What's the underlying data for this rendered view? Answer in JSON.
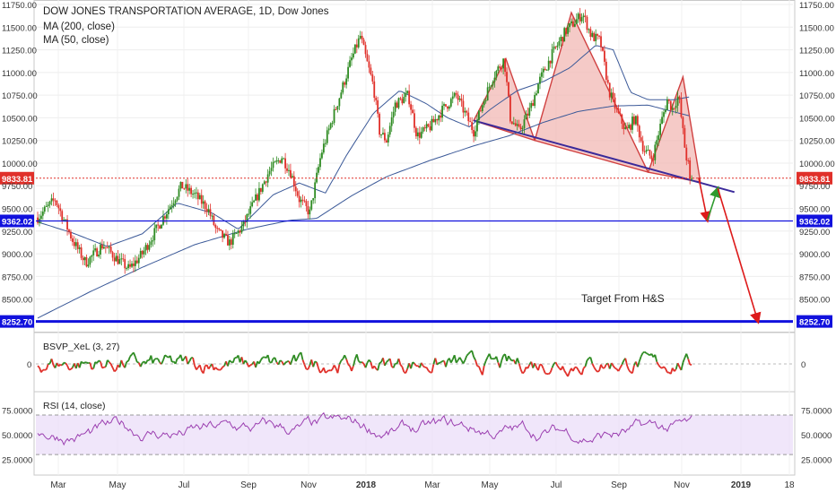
{
  "header": {
    "symbol_line": "DOW JONES TRANSPORTATION AVERAGE, 1D, Dow Jones",
    "ma200_label": "MA (200, close)",
    "ma50_label": "MA (50, close)"
  },
  "annotation": {
    "target_text": "Target From H&S"
  },
  "colors": {
    "up": "#2e8b22",
    "down": "#e0302a",
    "ma": "#3b5998",
    "hline": "#1111dd",
    "current_price": "#e0302a",
    "hs_fill": "#f2b8b4",
    "hs_line": "#d04040",
    "neckline": "#3a2a9a",
    "rsi_band": "#eadcf8",
    "rsi_line": "#9b3fb0",
    "arrow_green": "#2e9b2e",
    "arrow_red": "#dd1a1a"
  },
  "chart_data": {
    "type": "line",
    "title": "DOW JONES TRANSPORTATION AVERAGE, 1D, Dow Jones",
    "ylim": [
      8160,
      11780
    ],
    "y_ticks": [
      8500,
      8750,
      9000,
      9250,
      9500,
      9750,
      10000,
      10250,
      10500,
      10750,
      11000,
      11250,
      11500,
      11750
    ],
    "y_tick_labels": [
      "8500.00",
      "8750.00",
      "9000.00",
      "9250.00",
      "9500.00",
      "9750.00",
      "10000.00",
      "10250.00",
      "10500.00",
      "10750.00",
      "11000.00",
      "11250.00",
      "11500.00",
      "11750.00"
    ],
    "x_tick_labels": [
      "Mar",
      "May",
      "Jul",
      "Sep",
      "Nov",
      "2018",
      "Mar",
      "May",
      "Jul",
      "Sep",
      "Nov",
      "2019",
      "18"
    ],
    "price_series": {
      "name": "Close",
      "anchors": [
        [
          0,
          9400
        ],
        [
          20,
          9600
        ],
        [
          40,
          9150
        ],
        [
          55,
          8900
        ],
        [
          75,
          9100
        ],
        [
          90,
          8950
        ],
        [
          105,
          8830
        ],
        [
          120,
          9000
        ],
        [
          135,
          9250
        ],
        [
          150,
          9500
        ],
        [
          165,
          9750
        ],
        [
          180,
          9650
        ],
        [
          195,
          9500
        ],
        [
          205,
          9250
        ],
        [
          220,
          9120
        ],
        [
          235,
          9300
        ],
        [
          250,
          9600
        ],
        [
          265,
          9900
        ],
        [
          280,
          10070
        ],
        [
          290,
          9900
        ],
        [
          300,
          9600
        ],
        [
          312,
          9450
        ],
        [
          325,
          10100
        ],
        [
          345,
          10700
        ],
        [
          360,
          11150
        ],
        [
          370,
          11400
        ],
        [
          378,
          11100
        ],
        [
          385,
          10850
        ],
        [
          392,
          10350
        ],
        [
          400,
          10250
        ],
        [
          410,
          10650
        ],
        [
          425,
          10750
        ],
        [
          435,
          10300
        ],
        [
          450,
          10400
        ],
        [
          465,
          10600
        ],
        [
          480,
          10750
        ],
        [
          490,
          10550
        ],
        [
          500,
          10350
        ],
        [
          510,
          10650
        ],
        [
          522,
          10950
        ],
        [
          535,
          11150
        ],
        [
          542,
          10500
        ],
        [
          552,
          10350
        ],
        [
          565,
          10600
        ],
        [
          575,
          10900
        ],
        [
          590,
          11200
        ],
        [
          605,
          11450
        ],
        [
          615,
          11550
        ],
        [
          625,
          11650
        ],
        [
          635,
          11400
        ],
        [
          645,
          11350
        ],
        [
          655,
          10800
        ],
        [
          665,
          10550
        ],
        [
          675,
          10350
        ],
        [
          685,
          10500
        ],
        [
          695,
          10150
        ],
        [
          705,
          10050
        ],
        [
          715,
          10450
        ],
        [
          722,
          10700
        ],
        [
          728,
          10600
        ],
        [
          735,
          10750
        ],
        [
          743,
          10100
        ],
        [
          750,
          9834
        ]
      ]
    },
    "ma50_anchors": [
      [
        0,
        9350
      ],
      [
        40,
        9230
      ],
      [
        80,
        9080
      ],
      [
        120,
        9220
      ],
      [
        160,
        9560
      ],
      [
        200,
        9450
      ],
      [
        230,
        9270
      ],
      [
        270,
        9650
      ],
      [
        300,
        9780
      ],
      [
        330,
        9670
      ],
      [
        355,
        10100
      ],
      [
        385,
        10550
      ],
      [
        415,
        10800
      ],
      [
        445,
        10660
      ],
      [
        470,
        10500
      ],
      [
        495,
        10400
      ],
      [
        520,
        10600
      ],
      [
        550,
        10800
      ],
      [
        580,
        10900
      ],
      [
        610,
        11050
      ],
      [
        640,
        11300
      ],
      [
        660,
        11250
      ],
      [
        680,
        10780
      ],
      [
        700,
        10700
      ],
      [
        730,
        10700
      ],
      [
        748,
        10730
      ]
    ],
    "ma200_anchors": [
      [
        0,
        8290
      ],
      [
        60,
        8580
      ],
      [
        120,
        8850
      ],
      [
        180,
        9100
      ],
      [
        240,
        9270
      ],
      [
        290,
        9370
      ],
      [
        320,
        9390
      ],
      [
        360,
        9640
      ],
      [
        400,
        9850
      ],
      [
        450,
        10030
      ],
      [
        500,
        10190
      ],
      [
        540,
        10300
      ],
      [
        580,
        10450
      ],
      [
        620,
        10570
      ],
      [
        660,
        10630
      ],
      [
        700,
        10640
      ],
      [
        748,
        10520
      ]
    ],
    "current_price": 9833.81,
    "current_price_label": "9833.81",
    "horizontal_levels": [
      {
        "value": 9362.02,
        "label": "9362.02"
      },
      {
        "value": 8252.7,
        "label": "8252.70"
      }
    ],
    "head_and_shoulders": {
      "left_shoulder": [
        [
          500,
          10470
        ],
        [
          537,
          11150
        ],
        [
          570,
          10250
        ]
      ],
      "head": [
        [
          570,
          10250
        ],
        [
          612,
          11660
        ],
        [
          700,
          9900
        ]
      ],
      "right_shoulder": [
        [
          700,
          9900
        ],
        [
          740,
          10950
        ],
        [
          760,
          9790
        ]
      ],
      "neckline": [
        [
          500,
          10470
        ],
        [
          799,
          9680
        ]
      ]
    },
    "projection_arrows": [
      {
        "color": "red",
        "from": [
          758,
          9840
        ],
        "to": [
          768,
          9370
        ]
      },
      {
        "color": "green",
        "from": [
          768,
          9370
        ],
        "to": [
          780,
          9720
        ]
      },
      {
        "color": "red",
        "from": [
          780,
          9720
        ],
        "to": [
          826,
          8252.7
        ]
      }
    ],
    "indicators": [
      {
        "name": "BSVP_XeL (3, 27)",
        "zero_label": "0"
      },
      {
        "name": "RSI (14, close)",
        "y_ticks": [
          "75.0000",
          "50.0000",
          "25.0000"
        ],
        "band": [
          30,
          70
        ]
      }
    ]
  }
}
